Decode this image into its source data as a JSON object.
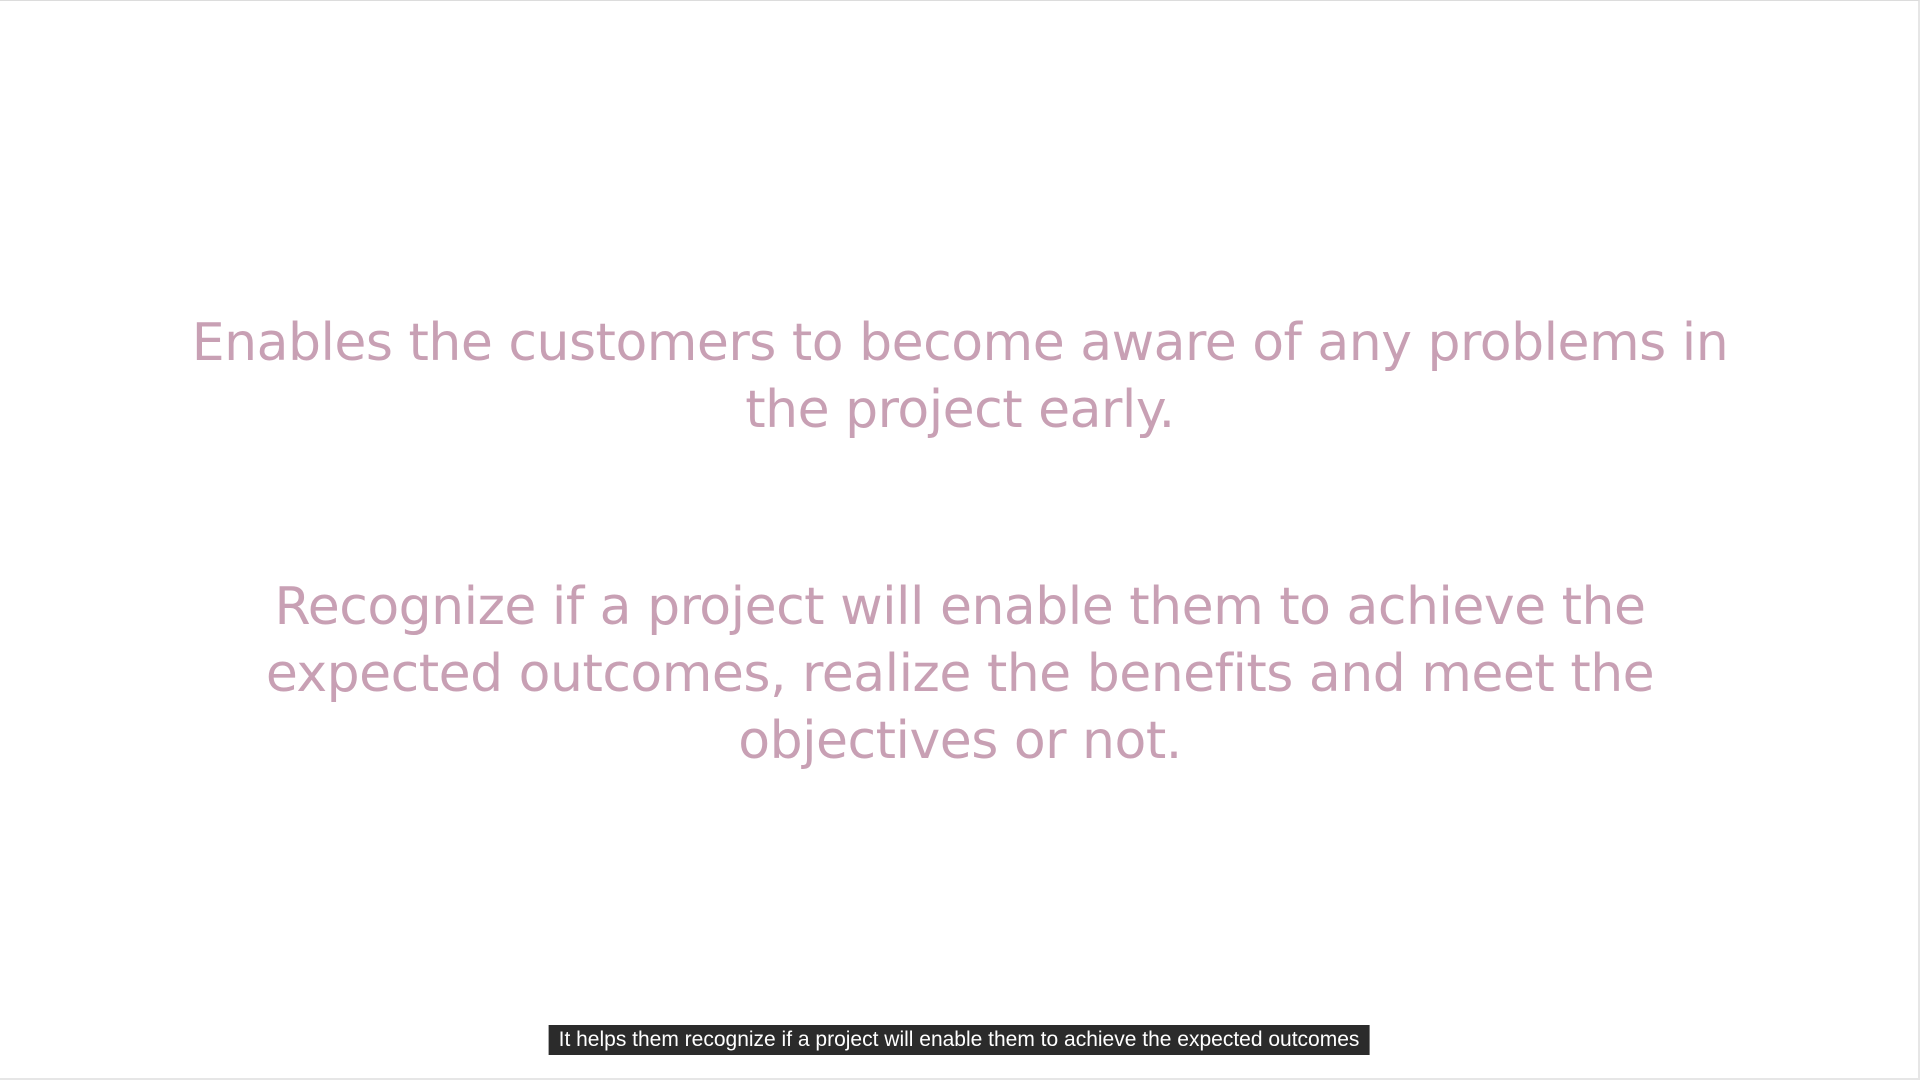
{
  "slide": {
    "points": [
      "Enables the customers to become aware of any problems in the project early.",
      "Recognize if a project will enable them to achieve the expected outcomes, realize the benefits and meet the objectives or not."
    ]
  },
  "caption": {
    "text": "It helps them recognize if a project will enable them to achieve the expected outcomes"
  },
  "colors": {
    "slide_text": "#c8a0b4",
    "caption_bg": "#2b2b2b",
    "caption_text": "#ffffff"
  }
}
